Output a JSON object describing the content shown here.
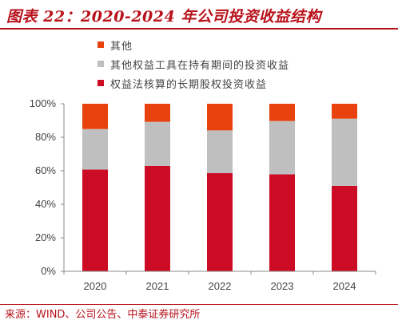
{
  "title": "图表 22：2020-2024 年公司投资收益结构",
  "source": "来源：WIND、公司公告、中泰证券研究所",
  "colors": {
    "accent": "#b8121b",
    "series": [
      "#cc0c25",
      "#bfbfbf",
      "#e8420e"
    ]
  },
  "legend": [
    {
      "name": "其他",
      "color": "#e8420e"
    },
    {
      "name": "其他权益工具在持有期间的投资收益",
      "color": "#bfbfbf"
    },
    {
      "name": "权益法核算的长期股权投资收益",
      "color": "#cc0c25"
    }
  ],
  "chart_data": {
    "type": "bar",
    "stacked": true,
    "categories": [
      "2020",
      "2021",
      "2022",
      "2023",
      "2024"
    ],
    "series": [
      {
        "name": "权益法核算的长期股权投资收益",
        "values": [
          60.7,
          62.9,
          58.6,
          57.9,
          51.0
        ]
      },
      {
        "name": "其他权益工具在持有期间的投资收益",
        "values": [
          24.2,
          26.3,
          25.5,
          31.8,
          40.1
        ]
      },
      {
        "name": "其他",
        "values": [
          15.1,
          10.8,
          15.9,
          10.3,
          8.9
        ]
      }
    ],
    "yticks": [
      "0%",
      "20%",
      "40%",
      "60%",
      "80%",
      "100%"
    ],
    "ylim": [
      0,
      100
    ],
    "grid": false,
    "legend_position": "top-left"
  }
}
